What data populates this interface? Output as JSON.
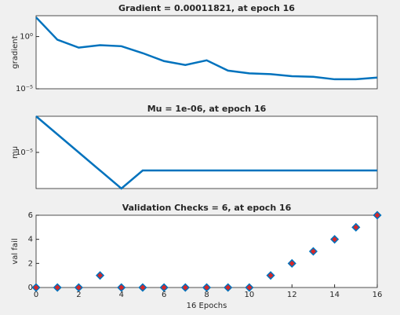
{
  "chart_data": [
    {
      "type": "line",
      "title": "Gradient = 0.00011821, at epoch 16",
      "ylabel": "gradient",
      "yscale": "log",
      "color": "#0072bd",
      "x": [
        0,
        1,
        2,
        3,
        4,
        5,
        6,
        7,
        8,
        9,
        10,
        11,
        12,
        13,
        14,
        15,
        16
      ],
      "values": [
        70,
        0.5,
        0.087,
        0.15,
        0.12,
        0.026,
        0.0045,
        0.0019,
        0.0053,
        0.00055,
        0.0003,
        0.00025,
        0.00016,
        0.00014,
        8.1e-05,
        8.1e-05,
        0.00011821
      ],
      "xlim": [
        0,
        16
      ],
      "ylim": [
        1e-05,
        100
      ],
      "yticks": [
        {
          "value": 1,
          "label": "10⁰"
        },
        {
          "value": 1e-05,
          "label": "10⁻⁵"
        }
      ]
    },
    {
      "type": "line",
      "title": "Mu = 1e-06, at epoch 16",
      "ylabel": "mu",
      "yscale": "log",
      "color": "#0072bd",
      "x": [
        0,
        1,
        2,
        3,
        4,
        5,
        6,
        7,
        8,
        9,
        10,
        11,
        12,
        13,
        14,
        15,
        16
      ],
      "values": [
        0.001,
        0.0001,
        1e-05,
        1e-06,
        1e-07,
        1e-06,
        1e-06,
        1e-06,
        1e-06,
        1e-06,
        1e-06,
        1e-06,
        1e-06,
        1e-06,
        1e-06,
        1e-06,
        1e-06
      ],
      "xlim": [
        0,
        16
      ],
      "ylim": [
        1e-07,
        0.001
      ],
      "yticks": [
        {
          "value": 1e-05,
          "label": "10⁻⁵"
        }
      ]
    },
    {
      "type": "scatter",
      "title": "Validation Checks = 6, at epoch 16",
      "ylabel": "val fail",
      "xlabel": "16 Epochs",
      "color": "#d62728",
      "edge_color": "#0072bd",
      "x": [
        0,
        1,
        2,
        3,
        4,
        5,
        6,
        7,
        8,
        9,
        10,
        11,
        12,
        13,
        14,
        15,
        16
      ],
      "values": [
        0,
        0,
        0,
        1,
        0,
        0,
        0,
        0,
        0,
        0,
        0,
        1,
        2,
        3,
        4,
        5,
        6
      ],
      "xlim": [
        0,
        16
      ],
      "ylim": [
        0,
        6
      ],
      "xticks": [
        0,
        2,
        4,
        6,
        8,
        10,
        12,
        14,
        16
      ],
      "yticks": [
        0,
        2,
        4,
        6
      ]
    }
  ]
}
